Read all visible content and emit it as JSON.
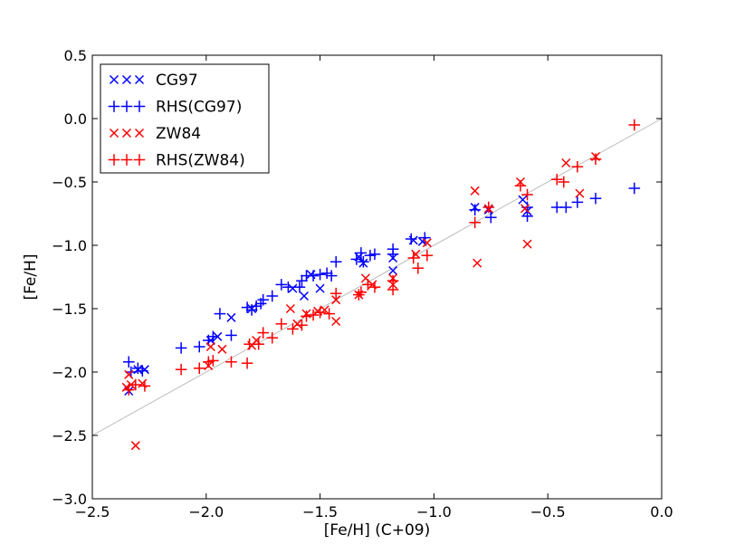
{
  "chart_data": {
    "type": "scatter",
    "xlabel": "[Fe/H] (C+09)",
    "ylabel": "[Fe/H]",
    "xlim": [
      -2.5,
      0.0
    ],
    "ylim": [
      -3.0,
      0.5
    ],
    "xticks": [
      -2.5,
      -2.0,
      -1.5,
      -1.0,
      -0.5,
      0.0
    ],
    "yticks": [
      -3.0,
      -2.5,
      -2.0,
      -1.5,
      -1.0,
      -0.5,
      0.0,
      0.5
    ],
    "xtick_labels": [
      "−2.5",
      "−2.0",
      "−1.5",
      "−1.0",
      "−0.5",
      "0.0"
    ],
    "ytick_labels": [
      "−3.0",
      "−2.5",
      "−2.0",
      "−1.5",
      "−1.0",
      "−0.5",
      "0.0",
      "0.5"
    ],
    "reference_line": {
      "x": [
        -2.5,
        0.0
      ],
      "y": [
        -2.5,
        0.0
      ],
      "color": "#bbbbbb"
    },
    "legend_position": "top-left",
    "series": [
      {
        "name": "CG97",
        "marker": "x",
        "color": "#0000ff",
        "points": [
          [
            -2.34,
            -2.15
          ],
          [
            -2.3,
            -1.98
          ],
          [
            -2.27,
            -1.98
          ],
          [
            -1.98,
            -1.75
          ],
          [
            -1.95,
            -1.72
          ],
          [
            -1.89,
            -1.57
          ],
          [
            -1.8,
            -1.5
          ],
          [
            -1.62,
            -1.34
          ],
          [
            -1.57,
            -1.4
          ],
          [
            -1.54,
            -1.23
          ],
          [
            -1.5,
            -1.34
          ],
          [
            -1.31,
            -1.14
          ],
          [
            -1.33,
            -1.09
          ],
          [
            -1.18,
            -1.1
          ],
          [
            -1.18,
            -1.2
          ],
          [
            -1.09,
            -0.96
          ],
          [
            -1.05,
            -0.97
          ],
          [
            -0.82,
            -0.7
          ],
          [
            -0.76,
            -0.72
          ],
          [
            -0.61,
            -0.64
          ],
          [
            -0.59,
            -0.73
          ]
        ]
      },
      {
        "name": "RHS(CG97)",
        "marker": "+",
        "color": "#0000ff",
        "points": [
          [
            -2.34,
            -1.92
          ],
          [
            -2.33,
            -2.0
          ],
          [
            -2.3,
            -1.97
          ],
          [
            -2.28,
            -1.99
          ],
          [
            -2.11,
            -1.81
          ],
          [
            -2.03,
            -1.8
          ],
          [
            -1.99,
            -1.75
          ],
          [
            -1.97,
            -1.72
          ],
          [
            -1.94,
            -1.54
          ],
          [
            -1.89,
            -1.71
          ],
          [
            -1.82,
            -1.49
          ],
          [
            -1.8,
            -1.51
          ],
          [
            -1.78,
            -1.48
          ],
          [
            -1.76,
            -1.46
          ],
          [
            -1.75,
            -1.43
          ],
          [
            -1.71,
            -1.4
          ],
          [
            -1.67,
            -1.31
          ],
          [
            -1.64,
            -1.33
          ],
          [
            -1.59,
            -1.33
          ],
          [
            -1.58,
            -1.28
          ],
          [
            -1.56,
            -1.24
          ],
          [
            -1.53,
            -1.24
          ],
          [
            -1.5,
            -1.23
          ],
          [
            -1.47,
            -1.22
          ],
          [
            -1.45,
            -1.24
          ],
          [
            -1.43,
            -1.13
          ],
          [
            -1.34,
            -1.11
          ],
          [
            -1.32,
            -1.06
          ],
          [
            -1.31,
            -1.13
          ],
          [
            -1.28,
            -1.08
          ],
          [
            -1.26,
            -1.07
          ],
          [
            -1.18,
            -1.03
          ],
          [
            -1.18,
            -1.07
          ],
          [
            -1.1,
            -0.95
          ],
          [
            -1.04,
            -0.94
          ],
          [
            -0.82,
            -0.72
          ],
          [
            -0.75,
            -0.78
          ],
          [
            -0.59,
            -0.77
          ],
          [
            -0.59,
            -0.7
          ],
          [
            -0.46,
            -0.7
          ],
          [
            -0.42,
            -0.7
          ],
          [
            -0.37,
            -0.66
          ],
          [
            -0.29,
            -0.63
          ],
          [
            -0.12,
            -0.55
          ]
        ]
      },
      {
        "name": "ZW84",
        "marker": "x",
        "color": "#ff0000",
        "points": [
          [
            -2.35,
            -2.12
          ],
          [
            -2.34,
            -2.02
          ],
          [
            -2.33,
            -2.1
          ],
          [
            -2.31,
            -2.58
          ],
          [
            -2.28,
            -2.09
          ],
          [
            -1.99,
            -1.95
          ],
          [
            -1.98,
            -1.8
          ],
          [
            -1.93,
            -1.82
          ],
          [
            -1.8,
            -1.79
          ],
          [
            -1.78,
            -1.75
          ],
          [
            -1.63,
            -1.5
          ],
          [
            -1.6,
            -1.62
          ],
          [
            -1.56,
            -1.54
          ],
          [
            -1.51,
            -1.52
          ],
          [
            -1.48,
            -1.51
          ],
          [
            -1.43,
            -1.43
          ],
          [
            -1.43,
            -1.6
          ],
          [
            -1.33,
            -1.39
          ],
          [
            -1.3,
            -1.26
          ],
          [
            -1.27,
            -1.31
          ],
          [
            -1.18,
            -1.26
          ],
          [
            -1.18,
            -1.31
          ],
          [
            -1.08,
            -1.07
          ],
          [
            -1.03,
            -0.98
          ],
          [
            -0.82,
            -0.57
          ],
          [
            -0.81,
            -1.14
          ],
          [
            -0.76,
            -0.71
          ],
          [
            -0.62,
            -0.5
          ],
          [
            -0.6,
            -0.71
          ],
          [
            -0.59,
            -0.99
          ],
          [
            -0.42,
            -0.35
          ],
          [
            -0.36,
            -0.59
          ],
          [
            -0.29,
            -0.3
          ]
        ]
      },
      {
        "name": "RHS(ZW84)",
        "marker": "+",
        "color": "#ff0000",
        "points": [
          [
            -2.34,
            -2.14
          ],
          [
            -2.31,
            -2.1
          ],
          [
            -2.27,
            -2.11
          ],
          [
            -2.11,
            -1.98
          ],
          [
            -2.03,
            -1.97
          ],
          [
            -1.99,
            -1.92
          ],
          [
            -1.97,
            -1.91
          ],
          [
            -1.89,
            -1.92
          ],
          [
            -1.82,
            -1.93
          ],
          [
            -1.81,
            -1.78
          ],
          [
            -1.77,
            -1.78
          ],
          [
            -1.75,
            -1.69
          ],
          [
            -1.71,
            -1.73
          ],
          [
            -1.67,
            -1.62
          ],
          [
            -1.62,
            -1.66
          ],
          [
            -1.58,
            -1.63
          ],
          [
            -1.56,
            -1.56
          ],
          [
            -1.53,
            -1.55
          ],
          [
            -1.5,
            -1.53
          ],
          [
            -1.46,
            -1.54
          ],
          [
            -1.43,
            -1.38
          ],
          [
            -1.33,
            -1.39
          ],
          [
            -1.32,
            -1.37
          ],
          [
            -1.29,
            -1.31
          ],
          [
            -1.26,
            -1.33
          ],
          [
            -1.18,
            -1.35
          ],
          [
            -1.18,
            -1.28
          ],
          [
            -1.09,
            -1.1
          ],
          [
            -1.07,
            -1.18
          ],
          [
            -1.03,
            -1.08
          ],
          [
            -0.82,
            -0.82
          ],
          [
            -0.76,
            -0.7
          ],
          [
            -0.62,
            -0.53
          ],
          [
            -0.59,
            -0.6
          ],
          [
            -0.46,
            -0.48
          ],
          [
            -0.43,
            -0.5
          ],
          [
            -0.37,
            -0.38
          ],
          [
            -0.29,
            -0.32
          ],
          [
            -0.12,
            -0.05
          ]
        ]
      }
    ]
  }
}
